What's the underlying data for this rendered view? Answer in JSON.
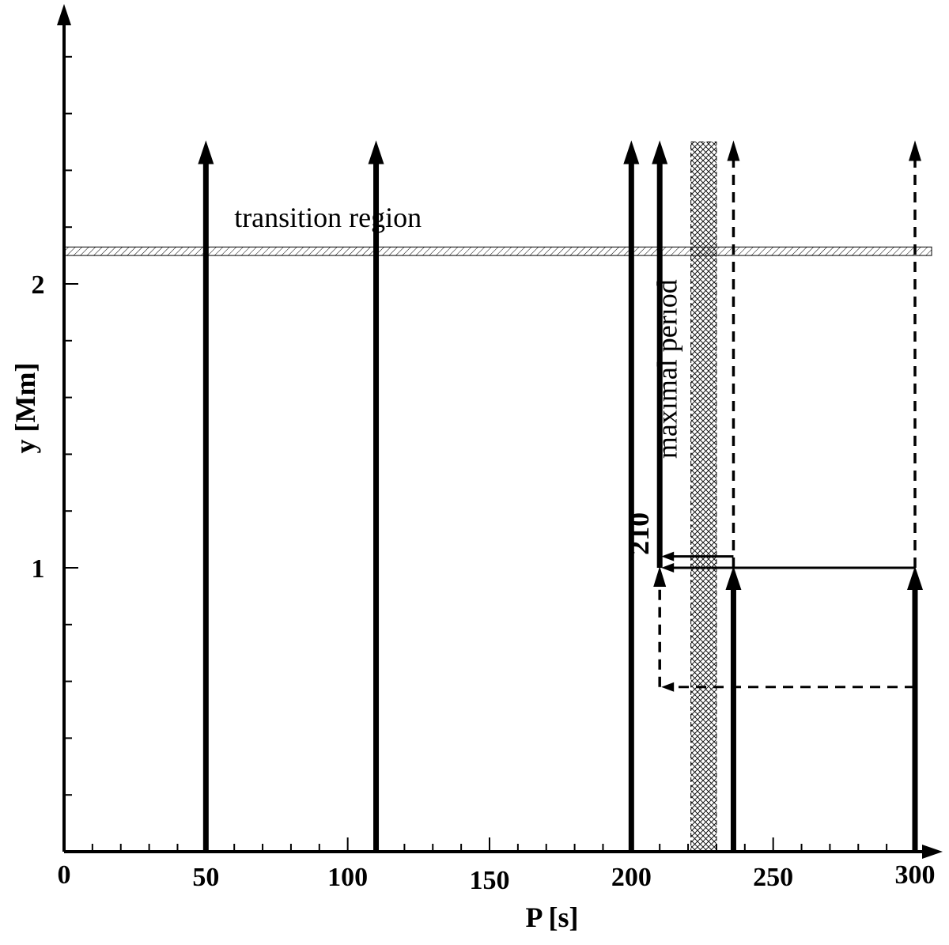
{
  "chart_data": {
    "type": "line",
    "xlabel": "P [s]",
    "ylabel": "y [Mm]",
    "xlim": [
      0,
      300
    ],
    "ylim": [
      0,
      2.8
    ],
    "x_ticks": [
      "0",
      "50",
      "100",
      "150",
      "200",
      "250",
      "300"
    ],
    "x_tick_values": [
      0,
      50,
      100,
      150,
      200,
      250,
      300
    ],
    "y_ticks": [
      "1",
      "2"
    ],
    "y_tick_values": [
      1,
      2
    ],
    "grid": false,
    "bands": [
      {
        "kind": "horizontal",
        "label": "transition region",
        "y_from": 2.1,
        "y_to": 2.13
      },
      {
        "kind": "vertical",
        "label": "maximal period",
        "x_from": 221,
        "x_to": 230,
        "y_from": 0,
        "y_to": 2.5
      }
    ],
    "solid_arrows": [
      {
        "x": 50,
        "y_from": 0,
        "y_to": 2.5
      },
      {
        "x": 110,
        "y_from": 0,
        "y_to": 2.5
      },
      {
        "x": 200,
        "y_from": 0,
        "y_to": 2.5
      },
      {
        "x": 210,
        "y_from": 1.0,
        "y_to": 2.5
      },
      {
        "x": 236,
        "y_from": 0,
        "y_to": 1.0
      },
      {
        "x": 300,
        "y_from": 0,
        "y_to": 1.0
      }
    ],
    "dashed_arrows": [
      {
        "x": 236,
        "y_from": 1.0,
        "y_to": 2.5
      },
      {
        "x": 300,
        "y_from": 1.0,
        "y_to": 2.5
      },
      {
        "x": 210,
        "y_from": 0.58,
        "y_to": 1.0
      }
    ],
    "connectors": [
      {
        "style": "solid",
        "y": 1.0,
        "x_from": 300,
        "x_to": 210,
        "arrow_at": "end"
      },
      {
        "style": "solid",
        "y": 1.04,
        "x_from": 236,
        "x_to": 210,
        "arrow_at": "end"
      },
      {
        "style": "dashed",
        "y": 0.58,
        "x_from": 300,
        "x_to": 210,
        "arrow_at": "end"
      },
      {
        "style": "dashed",
        "y": 0.58,
        "x_from": 210,
        "x_to": 210
      }
    ],
    "annotations": [
      {
        "text": "transition region",
        "x": 60,
        "y": 2.2
      },
      {
        "text": "maximal period",
        "x": 216,
        "y": 1.7,
        "rotation": -90
      },
      {
        "text": "210",
        "x": 206,
        "y": 1.12,
        "rotation": -90,
        "bold": true
      }
    ]
  }
}
